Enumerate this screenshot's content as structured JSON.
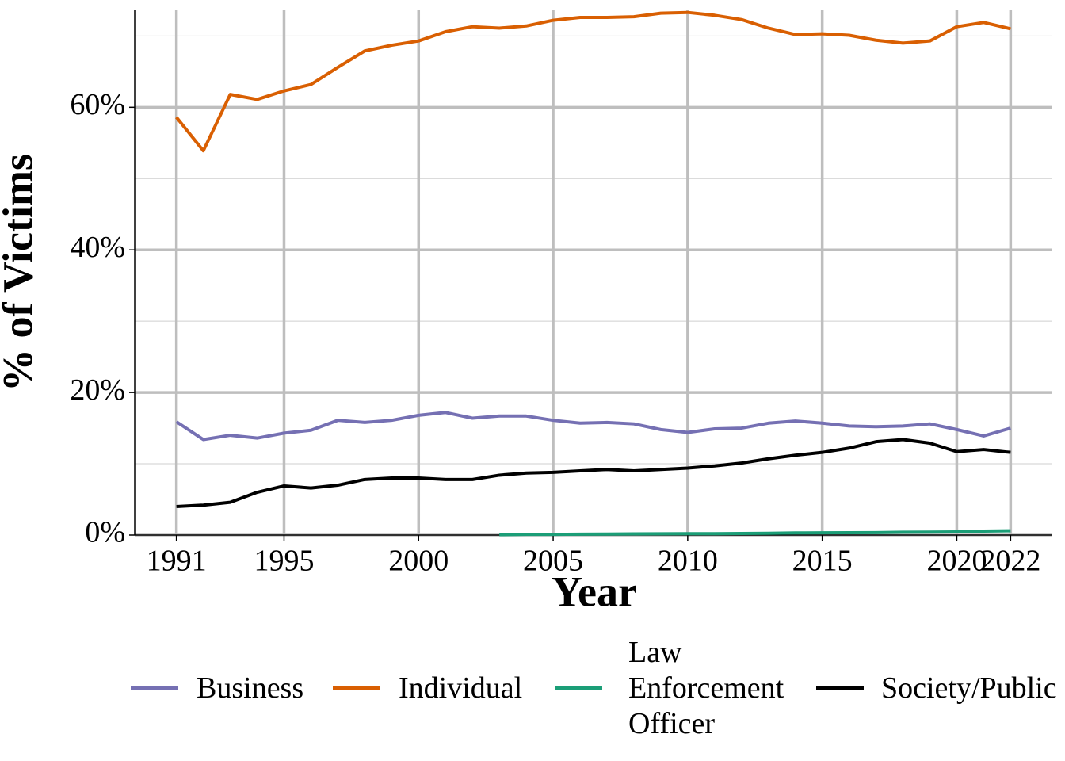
{
  "chart_data": {
    "type": "line",
    "x_label": "Year",
    "y_label": "% of Victims",
    "x": [
      1991,
      1992,
      1993,
      1994,
      1995,
      1996,
      1997,
      1998,
      1999,
      2000,
      2001,
      2002,
      2003,
      2004,
      2005,
      2006,
      2007,
      2008,
      2009,
      2010,
      2011,
      2012,
      2013,
      2014,
      2015,
      2016,
      2017,
      2018,
      2019,
      2020,
      2021,
      2022
    ],
    "series": [
      {
        "name": "Business",
        "color": "#7570b3",
        "values": [
          15.9,
          13.4,
          14.0,
          13.6,
          14.3,
          14.7,
          16.1,
          15.8,
          16.1,
          16.8,
          17.2,
          16.4,
          16.7,
          16.7,
          16.1,
          15.7,
          15.8,
          15.6,
          14.8,
          14.4,
          14.9,
          15.0,
          15.7,
          16.0,
          15.7,
          15.3,
          15.2,
          15.3,
          15.6,
          14.8,
          13.9,
          15.0
        ]
      },
      {
        "name": "Individual",
        "color": "#d95f02",
        "values": [
          58.6,
          53.9,
          61.8,
          61.1,
          62.3,
          63.2,
          65.6,
          67.9,
          68.7,
          69.3,
          70.6,
          71.3,
          71.1,
          71.4,
          72.2,
          72.6,
          72.6,
          72.7,
          73.2,
          73.3,
          72.9,
          72.3,
          71.1,
          70.2,
          70.3,
          70.1,
          69.4,
          69.0,
          69.3,
          71.3,
          71.9,
          71.0
        ]
      },
      {
        "name": "Law\nEnforcement\nOfficer",
        "color": "#1b9e77",
        "values": [
          null,
          null,
          null,
          null,
          null,
          null,
          null,
          null,
          null,
          null,
          null,
          null,
          0.05,
          0.1,
          0.1,
          0.12,
          0.14,
          0.16,
          0.18,
          0.2,
          0.2,
          0.22,
          0.25,
          0.3,
          0.32,
          0.33,
          0.35,
          0.4,
          0.42,
          0.45,
          0.55,
          0.6
        ]
      },
      {
        "name": "Society/Public",
        "color": "#000000",
        "values": [
          4.0,
          4.2,
          4.6,
          6.0,
          6.9,
          6.6,
          7.0,
          7.8,
          8.0,
          8.0,
          7.8,
          7.8,
          8.4,
          8.7,
          8.8,
          9.0,
          9.2,
          9.0,
          9.2,
          9.4,
          9.7,
          10.1,
          10.7,
          11.2,
          11.6,
          12.2,
          13.1,
          13.4,
          12.9,
          11.7,
          12.0,
          11.6
        ]
      }
    ],
    "xlim": [
      1989.45,
      2023.55
    ],
    "xticks": [
      1991,
      1995,
      2000,
      2005,
      2010,
      2015,
      2020,
      2022
    ],
    "ylim": [
      0,
      73.6
    ],
    "yticks": [
      {
        "value": 0,
        "label": "0%"
      },
      {
        "value": 20,
        "label": "20%"
      },
      {
        "value": 40,
        "label": "40%"
      },
      {
        "value": 60,
        "label": "60%"
      }
    ],
    "y_minor_ticks": [
      10,
      30,
      50,
      70
    ],
    "grid": true,
    "legend": "bottom"
  }
}
